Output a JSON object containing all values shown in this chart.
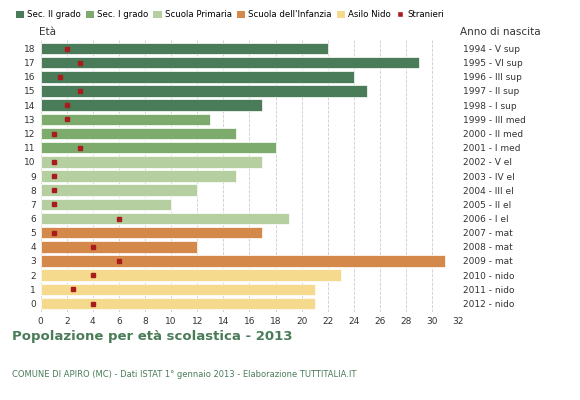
{
  "ages": [
    18,
    17,
    16,
    15,
    14,
    13,
    12,
    11,
    10,
    9,
    8,
    7,
    6,
    5,
    4,
    3,
    2,
    1,
    0
  ],
  "years": [
    "1994 - V sup",
    "1995 - VI sup",
    "1996 - III sup",
    "1997 - II sup",
    "1998 - I sup",
    "1999 - III med",
    "2000 - II med",
    "2001 - I med",
    "2002 - V el",
    "2003 - IV el",
    "2004 - III el",
    "2005 - II el",
    "2006 - I el",
    "2007 - mat",
    "2008 - mat",
    "2009 - mat",
    "2010 - nido",
    "2011 - nido",
    "2012 - nido"
  ],
  "bar_values": [
    22,
    29,
    24,
    25,
    17,
    13,
    15,
    18,
    17,
    15,
    12,
    10,
    19,
    17,
    12,
    31,
    23,
    21,
    21
  ],
  "stranieri": [
    2,
    3,
    1.5,
    3,
    2,
    2,
    1,
    3,
    1,
    1,
    1,
    1,
    6,
    1,
    4,
    6,
    4,
    2.5,
    4
  ],
  "bar_colors": [
    "#4a7c59",
    "#4a7c59",
    "#4a7c59",
    "#4a7c59",
    "#4a7c59",
    "#7dab6e",
    "#7dab6e",
    "#7dab6e",
    "#b5cfa0",
    "#b5cfa0",
    "#b5cfa0",
    "#b5cfa0",
    "#b5cfa0",
    "#d4884a",
    "#d4884a",
    "#d4884a",
    "#f5d98c",
    "#f5d98c",
    "#f5d98c"
  ],
  "legend_labels": [
    "Sec. II grado",
    "Sec. I grado",
    "Scuola Primaria",
    "Scuola dell'Infanzia",
    "Asilo Nido",
    "Stranieri"
  ],
  "legend_colors": [
    "#4a7c59",
    "#7dab6e",
    "#b5cfa0",
    "#d4884a",
    "#f5d98c",
    "#a81c1c"
  ],
  "title": "Popolazione per età scolastica - 2013",
  "subtitle": "COMUNE DI APIRO (MC) - Dati ISTAT 1° gennaio 2013 - Elaborazione TUTTITALIA.IT",
  "xlabel_age": "Età",
  "xlabel_year": "Anno di nascita",
  "xlim": [
    0,
    32
  ],
  "xticks": [
    0,
    2,
    4,
    6,
    8,
    10,
    12,
    14,
    16,
    18,
    20,
    22,
    24,
    26,
    28,
    30,
    32
  ],
  "bg_color": "#ffffff",
  "title_color": "#4a7c59",
  "subtitle_color": "#4a7c59",
  "stranieri_color": "#a81c1c",
  "bar_height": 0.82
}
